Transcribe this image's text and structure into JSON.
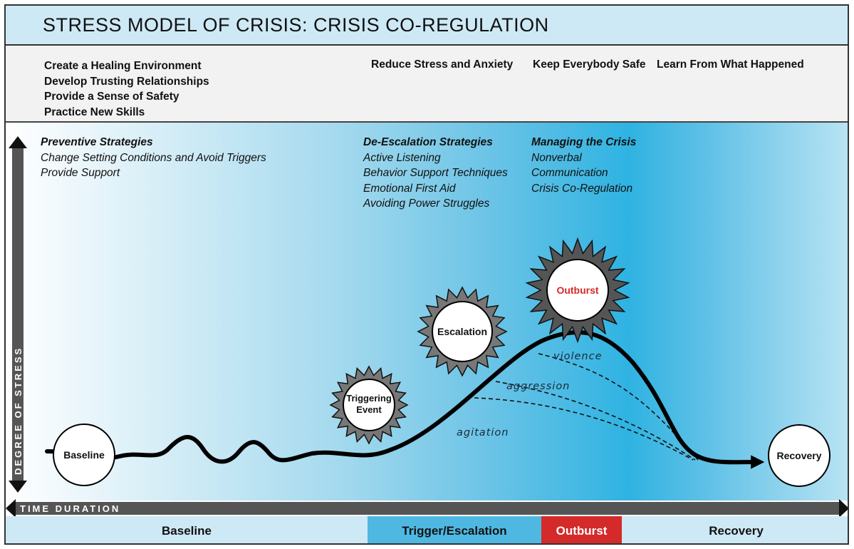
{
  "title": "STRESS MODEL OF CRISIS: CRISIS CO-REGULATION",
  "goals": {
    "baseline_items": [
      "Create a Healing Environment",
      "Develop Trusting Relationships",
      "Provide a Sense of Safety",
      "Practice New Skills"
    ],
    "escalation": "Reduce Stress and Anxiety",
    "outburst": "Keep Everybody Safe",
    "recovery": "Learn From What Happened"
  },
  "strategies": {
    "preventive": {
      "heading": "Preventive Strategies",
      "items": [
        "Change Setting Conditions and Avoid Triggers",
        "Provide Support"
      ]
    },
    "de_escalation": {
      "heading": "De-Escalation Strategies",
      "items": [
        "Active Listening",
        "Behavior Support Techniques",
        "Emotional First Aid",
        "Avoiding Power Struggles"
      ]
    },
    "managing": {
      "heading": "Managing the Crisis",
      "items": [
        "Nonverbal",
        "Communication",
        "Crisis Co-Regulation"
      ]
    }
  },
  "axes": {
    "y_label": "DEGREE OF STRESS",
    "x_label": "TIME DURATION"
  },
  "stages": {
    "baseline": "Baseline",
    "triggering_line1": "Triggering",
    "triggering_line2": "Event",
    "escalation": "Escalation",
    "outburst": "Outburst",
    "recovery": "Recovery"
  },
  "curve_labels": {
    "violence": "violence",
    "aggression": "aggression",
    "agitation": "agitation"
  },
  "phases": {
    "baseline": "Baseline",
    "trigger": "Trigger/Escalation",
    "outburst": "Outburst",
    "recovery": "Recovery"
  },
  "colors": {
    "outburst_red": "#d42a2a",
    "trigger_blue": "#4fb8e2",
    "band_blue": "#cde9f5"
  }
}
